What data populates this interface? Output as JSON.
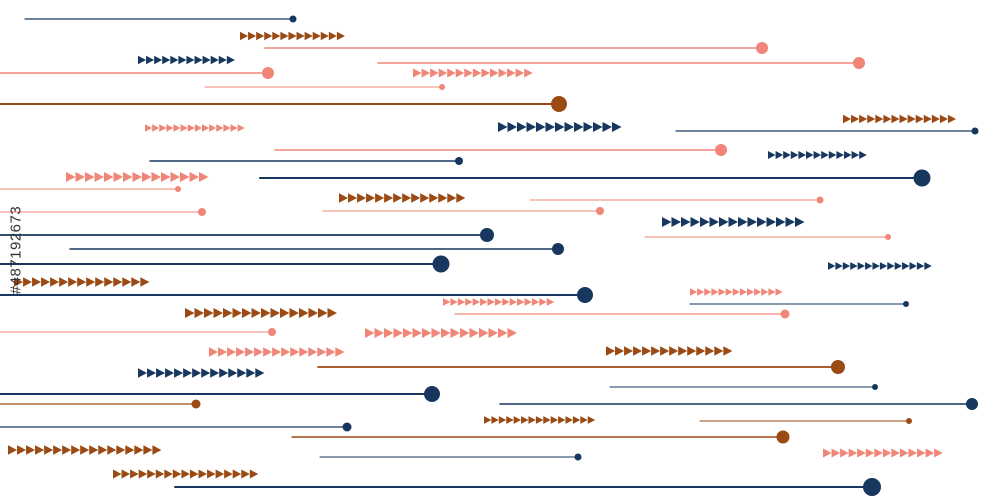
{
  "colors": {
    "navy": "#17375e",
    "salmon": "#f08677",
    "rust": "#9a4a12",
    "background": "#ffffff"
  },
  "watermark": {
    "stock_id": "#487192673"
  }
}
